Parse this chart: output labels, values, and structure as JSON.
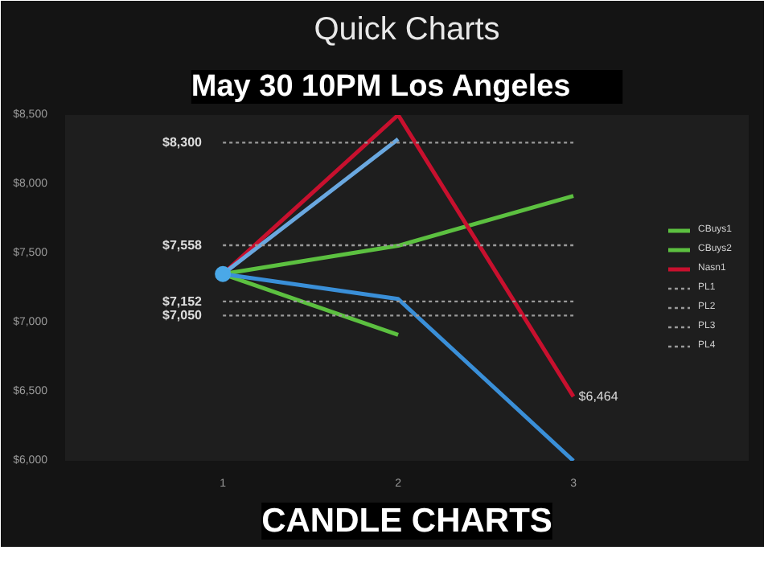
{
  "chart_data": {
    "type": "line",
    "title": "Quick Charts",
    "categories": [
      "1",
      "2",
      "3"
    ],
    "ylim": [
      6000,
      8500
    ],
    "yticks": [
      {
        "value": 6000,
        "label": "$6,000"
      },
      {
        "value": 6500,
        "label": "$6,500"
      },
      {
        "value": 7000,
        "label": "$7,000"
      },
      {
        "value": 7500,
        "label": "$7,500"
      },
      {
        "value": 8000,
        "label": "$8,000"
      },
      {
        "value": 8500,
        "label": "$8,500"
      }
    ],
    "grid": false,
    "legend": "right",
    "marker": "none",
    "series": [
      {
        "name": "CBuys1",
        "color": "#5cc040",
        "values": [
          7350,
          7555,
          7915
        ]
      },
      {
        "name": "CBuys2",
        "color": "#5cc040",
        "values": [
          7350,
          6910,
          null
        ]
      },
      {
        "name": "Nasn1",
        "color": "#c8102e",
        "values": [
          7350,
          8500,
          6464
        ]
      },
      {
        "color": "#6aa8e0",
        "values": [
          7350,
          8325,
          null
        ]
      },
      {
        "color": "#3a8fd8",
        "values": [
          7350,
          7170,
          6000
        ]
      },
      {
        "name": "PL1",
        "color": "#9a9a9a",
        "line_style": "dotted",
        "values": [
          8300,
          8300,
          8300
        ]
      },
      {
        "name": "PL2",
        "color": "#9a9a9a",
        "line_style": "dotted",
        "values": [
          7558,
          7558,
          7558
        ]
      },
      {
        "name": "PL3",
        "color": "#9a9a9a",
        "line_style": "dotted",
        "values": [
          7152,
          7152,
          7152
        ]
      },
      {
        "name": "PL4",
        "color": "#9a9a9a",
        "line_style": "dotted",
        "values": [
          7050,
          7050,
          7050
        ]
      }
    ],
    "annotations": [
      "May 30    10PM    Los Angeles",
      {
        "text": "$8,300",
        "x": "1",
        "y": 8300
      },
      {
        "text": "$7,558",
        "x": "1",
        "y": 7558
      },
      {
        "text": "$7,152",
        "x": "1",
        "y": 7152
      },
      {
        "text": "$7,050",
        "x": "1",
        "y": 7050
      },
      {
        "text": "$6,464",
        "x": "3",
        "y": 6464
      },
      "CANDLE CHARTS"
    ]
  }
}
